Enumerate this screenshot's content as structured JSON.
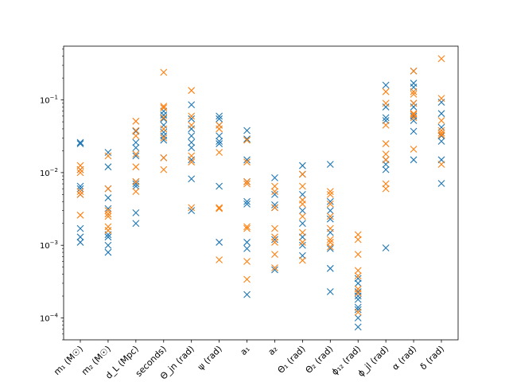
{
  "chart_data": {
    "type": "scatter",
    "title": "",
    "xlabel": "",
    "ylabel": "",
    "yscale": "log",
    "ylim": [
      5e-05,
      0.55
    ],
    "yticks": [
      {
        "value": 0.0001,
        "base": "10",
        "exp": "−4"
      },
      {
        "value": 0.001,
        "base": "10",
        "exp": "−3"
      },
      {
        "value": 0.01,
        "base": "10",
        "exp": "−2"
      },
      {
        "value": 0.1,
        "base": "10",
        "exp": "−1"
      }
    ],
    "grid": false,
    "legend": "none",
    "marker": "x",
    "categories": [
      "m₁ (M☉)",
      "m₂ (M☉)",
      "d_L (Mpc)",
      "seconds)",
      "Θ_jn (rad)",
      "ψ (rad)",
      "a₁",
      "a₂",
      "Θ₁ (rad)",
      "Θ₂ (rad)",
      "ϕ₁₂ (rad)",
      "ϕ_jl (rad)",
      "α (rad)",
      "δ (rad)"
    ],
    "series": [
      {
        "color": "#1f77b4",
        "values": [
          [
            0.026,
            0.025,
            0.011,
            0.0065,
            0.006,
            0.005,
            0.0017,
            0.0013,
            0.0011
          ],
          [
            0.019,
            0.012,
            0.006,
            0.0045,
            0.0032,
            0.0014,
            0.0013,
            0.001,
            0.0008
          ],
          [
            0.037,
            0.026,
            0.022,
            0.017,
            0.0075,
            0.007,
            0.0065,
            0.0028,
            0.002
          ],
          [
            0.07,
            0.062,
            0.055,
            0.045,
            0.036,
            0.032,
            0.028,
            0.016
          ],
          [
            0.086,
            0.055,
            0.04,
            0.032,
            0.026,
            0.022,
            0.015,
            0.0082,
            0.003
          ],
          [
            0.06,
            0.055,
            0.045,
            0.032,
            0.027,
            0.025,
            0.0065,
            0.0011
          ],
          [
            0.038,
            0.029,
            0.015,
            0.0075,
            0.004,
            0.0037,
            0.0011,
            0.0009,
            0.00021
          ],
          [
            0.0085,
            0.005,
            0.0036,
            0.0033,
            0.0012,
            0.00046
          ],
          [
            0.0125,
            0.0095,
            0.005,
            0.003,
            0.002,
            0.0013,
            0.001,
            0.00072
          ],
          [
            0.013,
            0.004,
            0.003,
            0.0023,
            0.0015,
            0.0009,
            0.00048,
            0.00023
          ],
          [
            0.00035,
            0.0003,
            0.00023,
            0.0002,
            0.00018,
            0.00014,
            0.00013,
            0.0001,
            7.5e-05
          ],
          [
            0.16,
            0.08,
            0.057,
            0.052,
            0.015,
            0.013,
            0.011,
            0.00092
          ],
          [
            0.25,
            0.17,
            0.15,
            0.09,
            0.08,
            0.06,
            0.052,
            0.037,
            0.015
          ],
          [
            0.093,
            0.065,
            0.042,
            0.032,
            0.027,
            0.015,
            0.0071
          ]
        ]
      },
      {
        "color": "#ff7f0e",
        "values": [
          [
            0.0125,
            0.01,
            0.0055,
            0.005,
            0.0026,
            0.011
          ],
          [
            0.017,
            0.006,
            0.003,
            0.0027,
            0.0025,
            0.0018,
            0.0016
          ],
          [
            0.051,
            0.038,
            0.032,
            0.018,
            0.012,
            0.0075,
            0.0055
          ],
          [
            0.24,
            0.082,
            0.078,
            0.057,
            0.04,
            0.03,
            0.016,
            0.011
          ],
          [
            0.135,
            0.06,
            0.045,
            0.017,
            0.014,
            0.0033
          ],
          [
            0.045,
            0.04,
            0.019,
            0.0033,
            0.0032,
            0.00063
          ],
          [
            0.028,
            0.014,
            0.007,
            0.0075,
            0.0018,
            0.0017,
            0.0006,
            0.00034
          ],
          [
            0.0065,
            0.0055,
            0.0033,
            0.0017,
            0.0013,
            0.0011,
            0.00075,
            0.00049
          ],
          [
            0.0095,
            0.0065,
            0.0042,
            0.0037,
            0.0025,
            0.0015,
            0.0011,
            0.00062
          ],
          [
            0.0055,
            0.005,
            0.0037,
            0.0025,
            0.0017,
            0.0012,
            0.0011,
            0.00095
          ],
          [
            0.0014,
            0.0012,
            0.00075,
            0.00045,
            0.00038,
            0.00025,
            0.00022,
            0.00012
          ],
          [
            0.13,
            0.09,
            0.045,
            0.025,
            0.018,
            0.015,
            0.007,
            0.006
          ],
          [
            0.25,
            0.13,
            0.12,
            0.09,
            0.065,
            0.063,
            0.057,
            0.021
          ],
          [
            0.37,
            0.105,
            0.052,
            0.038,
            0.035,
            0.033,
            0.013
          ]
        ]
      }
    ]
  }
}
